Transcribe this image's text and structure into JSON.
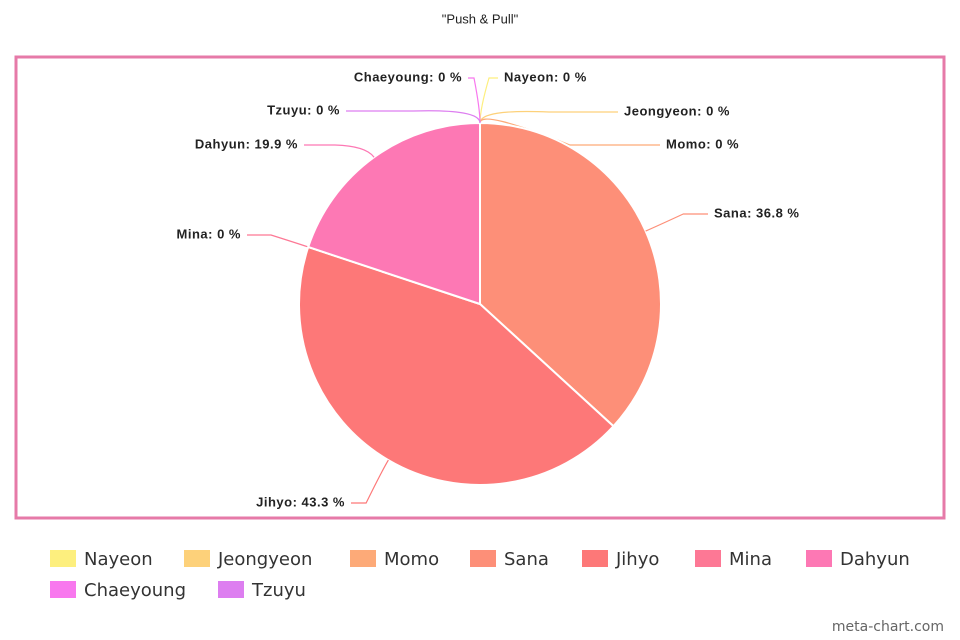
{
  "chart_data": {
    "type": "pie",
    "title": "\"Push & Pull\"",
    "categories": [
      "Nayeon",
      "Jeongyeon",
      "Momo",
      "Sana",
      "Jihyo",
      "Mina",
      "Dahyun",
      "Chaeyoung",
      "Tzuyu"
    ],
    "values": [
      0,
      0,
      0,
      36.8,
      43.3,
      0,
      19.9,
      0,
      0
    ],
    "value_labels": [
      "Nayeon: 0 %",
      "Jeongyeon: 0 %",
      "Momo: 0 %",
      "Sana: 36.8 %",
      "Jihyo: 43.3 %",
      "Mina: 0 %",
      "Dahyun: 19.9 %",
      "Chaeyoung: 0 %",
      "Tzuyu: 0 %"
    ],
    "colors": [
      "#fdef7e",
      "#fdd17a",
      "#fdaa78",
      "#fd8f78",
      "#fd7878",
      "#fd7895",
      "#fd78b4",
      "#f878ee",
      "#dd7ef0"
    ],
    "watermark": "meta-chart.com"
  }
}
